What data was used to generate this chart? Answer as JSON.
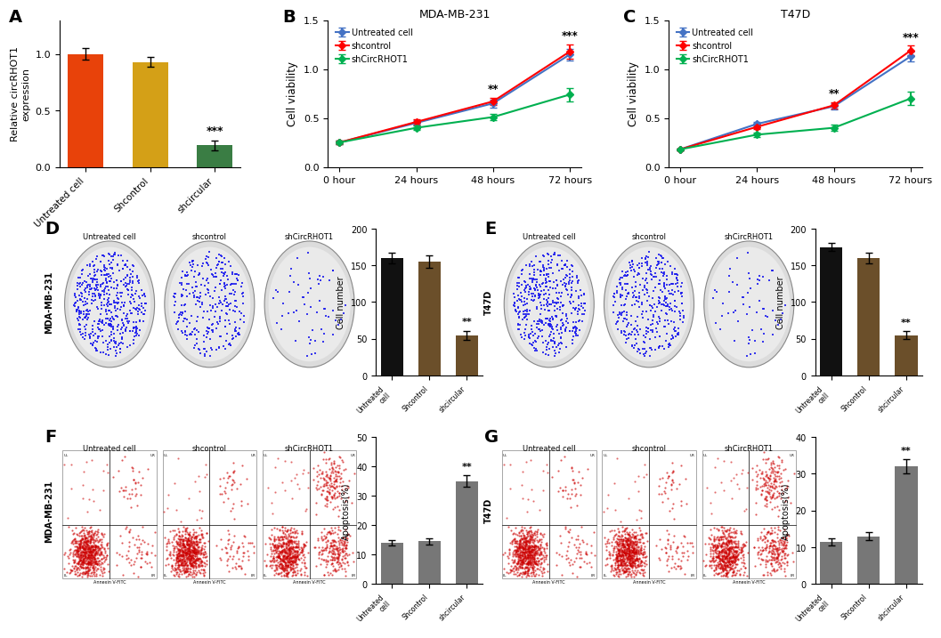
{
  "panel_A": {
    "ylabel": "Relative circRHOT1\nexpression",
    "categories": [
      "Untreated cell",
      "Shcontrol",
      "shcircular"
    ],
    "values": [
      1.0,
      0.93,
      0.19
    ],
    "errors": [
      0.05,
      0.04,
      0.04
    ],
    "colors": [
      "#E8420A",
      "#D4A017",
      "#3A7D44"
    ],
    "sig_label": "***",
    "ylim": [
      0,
      1.3
    ],
    "yticks": [
      0.0,
      0.5,
      1.0
    ]
  },
  "panel_B": {
    "title": "MDA-MB-231",
    "ylabel": "Cell viability",
    "xlabel_ticks": [
      "0 hour",
      "24 hours",
      "48 hours",
      "72 hours"
    ],
    "untreated": [
      0.25,
      0.45,
      0.65,
      1.15
    ],
    "shcontrol": [
      0.25,
      0.46,
      0.67,
      1.18
    ],
    "shCircRHOT1": [
      0.25,
      0.4,
      0.51,
      0.74
    ],
    "untreated_err": [
      0.02,
      0.03,
      0.04,
      0.06
    ],
    "shcontrol_err": [
      0.02,
      0.03,
      0.04,
      0.07
    ],
    "shCircRHOT1_err": [
      0.02,
      0.02,
      0.03,
      0.07
    ],
    "sig_48": "**",
    "sig_72": "***",
    "ylim": [
      0,
      1.5
    ],
    "yticks": [
      0.0,
      0.5,
      1.0,
      1.5
    ]
  },
  "panel_C": {
    "title": "T47D",
    "ylabel": "Cell viability",
    "xlabel_ticks": [
      "0 hour",
      "24 hours",
      "48 hours",
      "72 hours"
    ],
    "untreated": [
      0.18,
      0.44,
      0.62,
      1.13
    ],
    "shcontrol": [
      0.18,
      0.41,
      0.63,
      1.19
    ],
    "shCircRHOT1": [
      0.18,
      0.33,
      0.4,
      0.7
    ],
    "untreated_err": [
      0.01,
      0.02,
      0.03,
      0.05
    ],
    "shcontrol_err": [
      0.01,
      0.02,
      0.03,
      0.05
    ],
    "shCircRHOT1_err": [
      0.01,
      0.02,
      0.03,
      0.07
    ],
    "sig_48": "**",
    "sig_72": "***",
    "ylim": [
      0,
      1.5
    ],
    "yticks": [
      0.0,
      0.5,
      1.0,
      1.5
    ]
  },
  "panel_D_bar": {
    "ylabel": "Cell number",
    "categories": [
      "Untreated\ncell",
      "Shcontrol",
      "shcircular"
    ],
    "values": [
      160,
      155,
      55
    ],
    "errors": [
      7,
      8,
      6
    ],
    "colors": [
      "#111111",
      "#6B4F2A",
      "#6B4F2A"
    ],
    "sig_label": "**",
    "ylim": [
      0,
      200
    ],
    "yticks": [
      0,
      50,
      100,
      150,
      200
    ]
  },
  "panel_E_bar": {
    "ylabel": "Cell number",
    "categories": [
      "Untreated\ncell",
      "Shcontrol",
      "shcircular"
    ],
    "values": [
      175,
      160,
      55
    ],
    "errors": [
      6,
      7,
      5
    ],
    "colors": [
      "#111111",
      "#6B4F2A",
      "#6B4F2A"
    ],
    "sig_label": "**",
    "ylim": [
      0,
      200
    ],
    "yticks": [
      0,
      50,
      100,
      150,
      200
    ]
  },
  "panel_F_bar": {
    "ylabel": "Apoptosis(%)",
    "categories": [
      "Untreated\ncell",
      "Shcontrol",
      "shcircular"
    ],
    "values": [
      14.0,
      14.5,
      35.0
    ],
    "errors": [
      1.0,
      1.0,
      2.0
    ],
    "colors": [
      "#777777",
      "#777777",
      "#777777"
    ],
    "sig_label": "**",
    "ylim": [
      0,
      50
    ],
    "yticks": [
      0,
      10,
      20,
      30,
      40,
      50
    ]
  },
  "panel_G_bar": {
    "ylabel": "Apoptosis(%)",
    "categories": [
      "Untreated\ncell",
      "Shcontrol",
      "shcircular"
    ],
    "values": [
      11.5,
      13.0,
      32.0
    ],
    "errors": [
      1.0,
      1.0,
      2.0
    ],
    "colors": [
      "#777777",
      "#777777",
      "#777777"
    ],
    "sig_label": "**",
    "ylim": [
      0,
      40
    ],
    "yticks": [
      0,
      10,
      20,
      30,
      40
    ]
  },
  "line_colors": {
    "untreated": "#4472C4",
    "shcontrol": "#FF0000",
    "shCircRHOT1": "#00B050"
  },
  "legend_labels": [
    "Untreated cell",
    "shcontrol",
    "shCircRHOT1"
  ],
  "bg_color": "#FFFFFF"
}
